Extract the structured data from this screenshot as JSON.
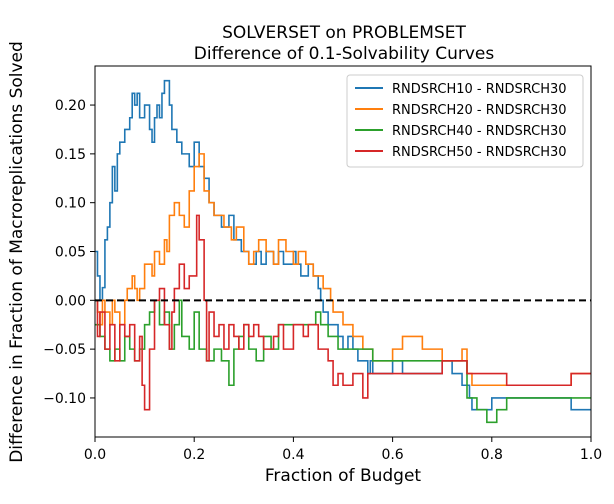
{
  "chart_data": {
    "type": "line",
    "title": [
      "SOLVERSET on PROBLEMSET",
      "Difference of 0.1-Solvability Curves"
    ],
    "xlabel": "Fraction of Budget",
    "ylabel": "Difference in Fraction of Macroreplications Solved",
    "xlim": [
      0.0,
      1.0
    ],
    "ylim": [
      -0.14,
      0.24
    ],
    "xticks": [
      "0.0",
      "0.2",
      "0.4",
      "0.6",
      "0.8",
      "1.0"
    ],
    "yticks": [
      "−0.10",
      "−0.05",
      "0.00",
      "0.05",
      "0.10",
      "0.15",
      "0.20"
    ],
    "grid": false,
    "legend_position": "upper right",
    "baseline": {
      "y": 0.0,
      "style": "dashed",
      "color": "#000000"
    },
    "series": [
      {
        "name": "RNDSRCH10 - RNDSRCH30",
        "color": "#1f77b4",
        "points": [
          [
            0.0,
            0.05
          ],
          [
            0.005,
            0.025
          ],
          [
            0.01,
            0.0
          ],
          [
            0.015,
            0.013
          ],
          [
            0.02,
            0.062
          ],
          [
            0.025,
            0.075
          ],
          [
            0.03,
            0.1
          ],
          [
            0.035,
            0.137
          ],
          [
            0.04,
            0.112
          ],
          [
            0.045,
            0.15
          ],
          [
            0.05,
            0.162
          ],
          [
            0.06,
            0.175
          ],
          [
            0.07,
            0.187
          ],
          [
            0.075,
            0.212
          ],
          [
            0.08,
            0.2
          ],
          [
            0.085,
            0.212
          ],
          [
            0.09,
            0.187
          ],
          [
            0.1,
            0.2
          ],
          [
            0.11,
            0.175
          ],
          [
            0.115,
            0.162
          ],
          [
            0.12,
            0.187
          ],
          [
            0.125,
            0.2
          ],
          [
            0.13,
            0.187
          ],
          [
            0.135,
            0.212
          ],
          [
            0.14,
            0.225
          ],
          [
            0.15,
            0.2
          ],
          [
            0.155,
            0.175
          ],
          [
            0.165,
            0.162
          ],
          [
            0.175,
            0.15
          ],
          [
            0.19,
            0.137
          ],
          [
            0.2,
            0.162
          ],
          [
            0.21,
            0.137
          ],
          [
            0.22,
            0.125
          ],
          [
            0.23,
            0.1
          ],
          [
            0.24,
            0.087
          ],
          [
            0.255,
            0.075
          ],
          [
            0.27,
            0.087
          ],
          [
            0.28,
            0.062
          ],
          [
            0.295,
            0.05
          ],
          [
            0.31,
            0.037
          ],
          [
            0.325,
            0.05
          ],
          [
            0.335,
            0.037
          ],
          [
            0.345,
            0.05
          ],
          [
            0.36,
            0.037
          ],
          [
            0.37,
            0.05
          ],
          [
            0.38,
            0.037
          ],
          [
            0.4,
            0.05
          ],
          [
            0.405,
            0.037
          ],
          [
            0.415,
            0.025
          ],
          [
            0.43,
            0.037
          ],
          [
            0.44,
            0.025
          ],
          [
            0.45,
            0.012
          ],
          [
            0.455,
            0.0
          ],
          [
            0.46,
            -0.012
          ],
          [
            0.47,
            -0.025
          ],
          [
            0.49,
            -0.037
          ],
          [
            0.5,
            -0.05
          ],
          [
            0.51,
            -0.037
          ],
          [
            0.52,
            -0.05
          ],
          [
            0.53,
            -0.062
          ],
          [
            0.55,
            -0.075
          ],
          [
            0.555,
            -0.062
          ],
          [
            0.56,
            -0.075
          ],
          [
            0.6,
            -0.062
          ],
          [
            0.62,
            -0.075
          ],
          [
            0.7,
            -0.062
          ],
          [
            0.72,
            -0.075
          ],
          [
            0.74,
            -0.087
          ],
          [
            0.755,
            -0.1
          ],
          [
            0.76,
            -0.112
          ],
          [
            0.8,
            -0.1
          ],
          [
            0.83,
            -0.1
          ],
          [
            0.93,
            -0.1
          ],
          [
            0.96,
            -0.112
          ],
          [
            1.0,
            -0.112
          ]
        ]
      },
      {
        "name": "RNDSRCH20 - RNDSRCH30",
        "color": "#ff7f0e",
        "points": [
          [
            0.0,
            0.0
          ],
          [
            0.005,
            -0.012
          ],
          [
            0.01,
            -0.025
          ],
          [
            0.015,
            0.0
          ],
          [
            0.02,
            -0.012
          ],
          [
            0.03,
            -0.025
          ],
          [
            0.035,
            0.0
          ],
          [
            0.04,
            -0.012
          ],
          [
            0.05,
            -0.025
          ],
          [
            0.06,
            0.0
          ],
          [
            0.065,
            0.012
          ],
          [
            0.075,
            0.025
          ],
          [
            0.08,
            0.012
          ],
          [
            0.085,
            0.0
          ],
          [
            0.09,
            0.012
          ],
          [
            0.1,
            0.037
          ],
          [
            0.115,
            0.025
          ],
          [
            0.12,
            0.05
          ],
          [
            0.13,
            0.037
          ],
          [
            0.14,
            0.062
          ],
          [
            0.145,
            0.05
          ],
          [
            0.15,
            0.087
          ],
          [
            0.16,
            0.1
          ],
          [
            0.17,
            0.087
          ],
          [
            0.18,
            0.075
          ],
          [
            0.19,
            0.112
          ],
          [
            0.2,
            0.137
          ],
          [
            0.21,
            0.15
          ],
          [
            0.22,
            0.112
          ],
          [
            0.23,
            0.1
          ],
          [
            0.24,
            0.087
          ],
          [
            0.26,
            0.075
          ],
          [
            0.275,
            0.062
          ],
          [
            0.285,
            0.075
          ],
          [
            0.3,
            0.05
          ],
          [
            0.31,
            0.037
          ],
          [
            0.32,
            0.05
          ],
          [
            0.33,
            0.062
          ],
          [
            0.345,
            0.05
          ],
          [
            0.36,
            0.037
          ],
          [
            0.37,
            0.062
          ],
          [
            0.385,
            0.05
          ],
          [
            0.4,
            0.037
          ],
          [
            0.41,
            0.05
          ],
          [
            0.425,
            0.037
          ],
          [
            0.44,
            0.025
          ],
          [
            0.46,
            0.012
          ],
          [
            0.475,
            0.0
          ],
          [
            0.48,
            -0.012
          ],
          [
            0.5,
            -0.025
          ],
          [
            0.52,
            -0.037
          ],
          [
            0.54,
            -0.05
          ],
          [
            0.56,
            -0.062
          ],
          [
            0.6,
            -0.05
          ],
          [
            0.62,
            -0.037
          ],
          [
            0.66,
            -0.05
          ],
          [
            0.7,
            -0.062
          ],
          [
            0.74,
            -0.05
          ],
          [
            0.75,
            -0.075
          ],
          [
            0.76,
            -0.087
          ],
          [
            0.83,
            -0.087
          ],
          [
            0.9,
            -0.087
          ],
          [
            0.94,
            -0.087
          ],
          [
            0.96,
            -0.075
          ],
          [
            1.0,
            -0.075
          ]
        ]
      },
      {
        "name": "RNDSRCH40 - RNDSRCH30",
        "color": "#2ca02c",
        "points": [
          [
            0.0,
            -0.025
          ],
          [
            0.01,
            -0.037
          ],
          [
            0.02,
            -0.05
          ],
          [
            0.03,
            -0.062
          ],
          [
            0.04,
            -0.05
          ],
          [
            0.05,
            -0.062
          ],
          [
            0.06,
            -0.037
          ],
          [
            0.07,
            -0.05
          ],
          [
            0.08,
            -0.062
          ],
          [
            0.09,
            -0.05
          ],
          [
            0.1,
            -0.025
          ],
          [
            0.11,
            -0.012
          ],
          [
            0.12,
            0.0
          ],
          [
            0.13,
            -0.025
          ],
          [
            0.14,
            -0.012
          ],
          [
            0.15,
            -0.05
          ],
          [
            0.16,
            -0.025
          ],
          [
            0.17,
            0.0
          ],
          [
            0.175,
            -0.037
          ],
          [
            0.19,
            -0.05
          ],
          [
            0.2,
            -0.012
          ],
          [
            0.21,
            -0.05
          ],
          [
            0.225,
            -0.062
          ],
          [
            0.24,
            -0.05
          ],
          [
            0.255,
            -0.062
          ],
          [
            0.27,
            -0.087
          ],
          [
            0.28,
            -0.05
          ],
          [
            0.29,
            -0.037
          ],
          [
            0.3,
            -0.025
          ],
          [
            0.31,
            -0.05
          ],
          [
            0.325,
            -0.062
          ],
          [
            0.34,
            -0.037
          ],
          [
            0.355,
            -0.05
          ],
          [
            0.37,
            -0.025
          ],
          [
            0.4,
            -0.025
          ],
          [
            0.43,
            -0.025
          ],
          [
            0.445,
            -0.012
          ],
          [
            0.455,
            -0.025
          ],
          [
            0.47,
            -0.037
          ],
          [
            0.49,
            -0.05
          ],
          [
            0.52,
            -0.05
          ],
          [
            0.56,
            -0.062
          ],
          [
            0.6,
            -0.062
          ],
          [
            0.68,
            -0.062
          ],
          [
            0.74,
            -0.062
          ],
          [
            0.75,
            -0.1
          ],
          [
            0.77,
            -0.112
          ],
          [
            0.79,
            -0.125
          ],
          [
            0.81,
            -0.112
          ],
          [
            0.83,
            -0.1
          ],
          [
            0.96,
            -0.1
          ],
          [
            1.0,
            -0.1
          ]
        ]
      },
      {
        "name": "RNDSRCH50 - RNDSRCH30",
        "color": "#d62728",
        "points": [
          [
            0.0,
            0.0
          ],
          [
            0.005,
            -0.037
          ],
          [
            0.01,
            -0.012
          ],
          [
            0.02,
            -0.05
          ],
          [
            0.03,
            -0.025
          ],
          [
            0.04,
            -0.062
          ],
          [
            0.05,
            -0.025
          ],
          [
            0.06,
            -0.037
          ],
          [
            0.07,
            -0.025
          ],
          [
            0.08,
            -0.062
          ],
          [
            0.09,
            -0.037
          ],
          [
            0.095,
            -0.087
          ],
          [
            0.1,
            -0.112
          ],
          [
            0.11,
            -0.05
          ],
          [
            0.12,
            0.0
          ],
          [
            0.13,
            0.012
          ],
          [
            0.14,
            -0.025
          ],
          [
            0.15,
            -0.05
          ],
          [
            0.155,
            -0.012
          ],
          [
            0.16,
            0.012
          ],
          [
            0.17,
            0.037
          ],
          [
            0.18,
            0.012
          ],
          [
            0.19,
            0.025
          ],
          [
            0.205,
            0.087
          ],
          [
            0.21,
            0.062
          ],
          [
            0.22,
            0.0
          ],
          [
            0.225,
            -0.062
          ],
          [
            0.23,
            -0.012
          ],
          [
            0.24,
            -0.037
          ],
          [
            0.25,
            -0.025
          ],
          [
            0.26,
            -0.05
          ],
          [
            0.27,
            -0.025
          ],
          [
            0.28,
            -0.037
          ],
          [
            0.29,
            -0.05
          ],
          [
            0.3,
            -0.025
          ],
          [
            0.31,
            -0.037
          ],
          [
            0.32,
            -0.025
          ],
          [
            0.33,
            -0.037
          ],
          [
            0.34,
            -0.05
          ],
          [
            0.36,
            -0.037
          ],
          [
            0.37,
            -0.025
          ],
          [
            0.38,
            -0.05
          ],
          [
            0.4,
            -0.025
          ],
          [
            0.42,
            -0.037
          ],
          [
            0.43,
            -0.025
          ],
          [
            0.45,
            -0.05
          ],
          [
            0.47,
            -0.062
          ],
          [
            0.48,
            -0.087
          ],
          [
            0.49,
            -0.075
          ],
          [
            0.5,
            -0.087
          ],
          [
            0.52,
            -0.075
          ],
          [
            0.54,
            -0.1
          ],
          [
            0.55,
            -0.075
          ],
          [
            0.6,
            -0.075
          ],
          [
            0.7,
            -0.062
          ],
          [
            0.75,
            -0.075
          ],
          [
            0.8,
            -0.075
          ],
          [
            0.83,
            -0.087
          ],
          [
            0.9,
            -0.087
          ],
          [
            0.94,
            -0.087
          ],
          [
            0.96,
            -0.075
          ],
          [
            1.0,
            -0.075
          ]
        ]
      }
    ]
  }
}
